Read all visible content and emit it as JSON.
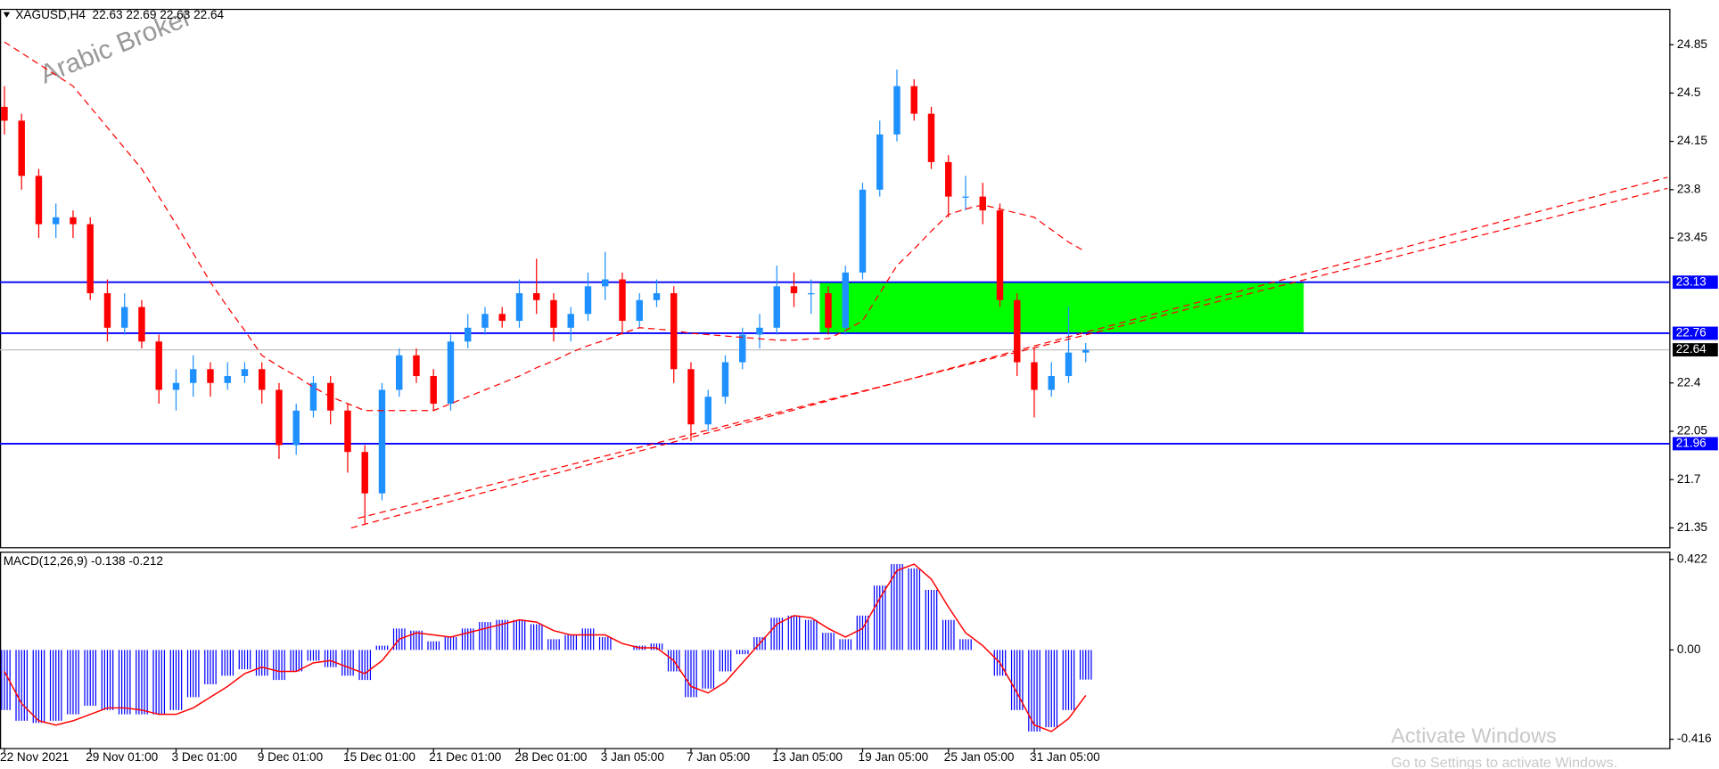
{
  "chart_data": [
    {
      "type": "candlestick",
      "title": "XAGUSD,H4  22.63 22.69 22.63 22.64",
      "watermark": "Arabic Broker",
      "categories": [
        "22 Nov 2021",
        null,
        null,
        null,
        null,
        "29 Nov 01:00",
        null,
        null,
        null,
        null,
        "3 Dec 01:00",
        null,
        null,
        null,
        null,
        "9 Dec 01:00",
        null,
        null,
        null,
        null,
        "15 Dec 01:00",
        null,
        null,
        null,
        null,
        "21 Dec 01:00",
        null,
        null,
        null,
        null,
        "28 Dec 01:00",
        null,
        null,
        null,
        null,
        "3 Jan 05:00",
        null,
        null,
        null,
        null,
        "7 Jan 05:00",
        null,
        null,
        null,
        null,
        "13 Jan 05:00",
        null,
        null,
        null,
        null,
        "19 Jan 05:00",
        null,
        null,
        null,
        null,
        "25 Jan 05:00",
        null,
        null,
        null,
        null,
        "31 Jan 05:00",
        null,
        null,
        null
      ],
      "open": [
        24.4,
        24.3,
        23.9,
        23.55,
        23.6,
        23.55,
        23.05,
        22.8,
        22.95,
        22.7,
        22.35,
        22.4,
        22.5,
        22.4,
        22.45,
        22.5,
        22.35,
        21.95,
        22.2,
        22.4,
        22.2,
        21.9,
        21.6,
        22.35,
        22.6,
        22.45,
        22.25,
        22.7,
        22.8,
        22.9,
        22.85,
        23.05,
        23.0,
        22.8,
        22.9,
        23.1,
        23.15,
        22.85,
        23.0,
        23.05,
        22.5,
        22.1,
        22.3,
        22.55,
        22.75,
        22.8,
        23.1,
        23.05,
        23.05,
        22.8,
        23.2,
        23.8,
        24.2,
        24.55,
        24.35,
        24.0,
        23.75,
        23.75,
        23.65,
        23.0,
        22.55,
        22.35,
        22.45,
        22.62
      ],
      "high": [
        24.55,
        24.35,
        23.95,
        23.7,
        23.65,
        23.6,
        23.15,
        23.05,
        23.0,
        22.75,
        22.5,
        22.6,
        22.55,
        22.55,
        22.55,
        22.55,
        22.4,
        22.25,
        22.45,
        22.45,
        22.25,
        21.95,
        22.4,
        22.65,
        22.65,
        22.5,
        22.75,
        22.9,
        22.95,
        22.95,
        23.15,
        23.3,
        23.05,
        22.95,
        23.2,
        23.35,
        23.2,
        23.05,
        23.15,
        23.1,
        22.55,
        22.35,
        22.6,
        22.8,
        22.9,
        23.25,
        23.2,
        23.15,
        23.1,
        23.25,
        23.85,
        24.3,
        24.67,
        24.6,
        24.4,
        24.05,
        23.9,
        23.85,
        23.7,
        23.05,
        22.65,
        22.55,
        22.95,
        22.69
      ],
      "low": [
        24.2,
        23.8,
        23.45,
        23.45,
        23.45,
        23.0,
        22.7,
        22.75,
        22.65,
        22.25,
        22.2,
        22.3,
        22.3,
        22.35,
        22.4,
        22.25,
        21.85,
        21.88,
        22.15,
        22.1,
        21.75,
        21.38,
        21.55,
        22.3,
        22.4,
        22.2,
        22.2,
        22.65,
        22.75,
        22.8,
        22.8,
        22.9,
        22.7,
        22.7,
        22.85,
        23.0,
        22.75,
        22.8,
        22.95,
        22.4,
        21.98,
        22.05,
        22.25,
        22.5,
        22.65,
        22.75,
        22.95,
        22.9,
        22.75,
        22.75,
        23.15,
        23.75,
        24.15,
        24.3,
        23.95,
        23.6,
        23.65,
        23.55,
        22.95,
        22.45,
        22.15,
        22.3,
        22.4,
        22.55
      ],
      "close": [
        24.3,
        23.9,
        23.55,
        23.6,
        23.55,
        23.05,
        22.8,
        22.95,
        22.7,
        22.35,
        22.4,
        22.5,
        22.4,
        22.45,
        22.5,
        22.35,
        21.95,
        22.2,
        22.4,
        22.2,
        21.9,
        21.6,
        22.35,
        22.6,
        22.45,
        22.25,
        22.7,
        22.8,
        22.9,
        22.85,
        23.05,
        23.0,
        22.8,
        22.9,
        23.1,
        23.15,
        22.85,
        23.0,
        23.05,
        22.5,
        22.1,
        22.3,
        22.55,
        22.75,
        22.8,
        23.1,
        23.05,
        23.05,
        22.8,
        23.2,
        23.8,
        24.2,
        24.55,
        24.35,
        24.0,
        23.75,
        23.75,
        23.65,
        23.0,
        22.55,
        22.35,
        22.45,
        22.62,
        22.64
      ],
      "up_color": "#1e90ff",
      "down_color": "#ff0000",
      "xlim": [
        0,
        97
      ],
      "ylim": [
        21.21,
        25.11
      ],
      "yticks": [
        21.35,
        21.7,
        22.05,
        22.4,
        23.45,
        23.8,
        24.15,
        24.5,
        24.85
      ],
      "moving_average": {
        "color": "#ff0000",
        "values": [
          24.87,
          24.79,
          24.71,
          24.63,
          24.55,
          24.4,
          24.25,
          24.1,
          23.95,
          23.75,
          23.55,
          23.34,
          23.13,
          22.95,
          22.78,
          22.6,
          22.52,
          22.45,
          22.37,
          22.3,
          22.25,
          22.2,
          22.2,
          22.2,
          22.2,
          22.2,
          22.25,
          22.3,
          22.35,
          22.4,
          22.45,
          22.51,
          22.56,
          22.62,
          22.67,
          22.71,
          22.76,
          22.8,
          22.79,
          22.78,
          22.76,
          22.75,
          22.74,
          22.73,
          22.72,
          22.71,
          22.71,
          22.72,
          22.72,
          22.78,
          22.85,
          23.05,
          23.25,
          23.37,
          23.5,
          23.62,
          23.66,
          23.69,
          23.66,
          23.63,
          23.6,
          23.51,
          23.42,
          23.35
        ]
      },
      "trendlines": [
        {
          "x": [
            20.2,
            96.9
          ],
          "y": [
            21.35,
            23.89
          ]
        },
        {
          "x": [
            20.6,
            96.9
          ],
          "y": [
            21.42,
            23.81
          ]
        }
      ],
      "levels": [
        23.13,
        22.76,
        21.96
      ],
      "level_color": "#0000ff",
      "last_price": 22.64,
      "zone": {
        "x": [
          47.5,
          75.7
        ],
        "y": [
          22.76,
          23.13
        ],
        "color": "#00ff00"
      }
    },
    {
      "type": "macd",
      "title": "MACD(12,26,9) -0.138 -0.212",
      "histogram": {
        "color": "#0000ff",
        "values": [
          -0.28,
          -0.33,
          -0.34,
          -0.33,
          -0.3,
          -0.26,
          -0.28,
          -0.3,
          -0.3,
          -0.3,
          -0.28,
          -0.22,
          -0.16,
          -0.12,
          -0.09,
          -0.12,
          -0.14,
          -0.1,
          -0.05,
          -0.08,
          -0.12,
          -0.14,
          0.02,
          0.1,
          0.09,
          0.04,
          0.06,
          0.1,
          0.13,
          0.14,
          0.14,
          0.12,
          0.05,
          0.07,
          0.1,
          0.06,
          0.0,
          0.02,
          0.03,
          -0.1,
          -0.22,
          -0.18,
          -0.1,
          -0.02,
          0.06,
          0.15,
          0.16,
          0.14,
          0.08,
          0.05,
          0.16,
          0.3,
          0.4,
          0.38,
          0.28,
          0.14,
          0.05,
          0.0,
          -0.12,
          -0.28,
          -0.38,
          -0.36,
          -0.28,
          -0.138
        ]
      },
      "signal": {
        "color": "#ff0000",
        "values": [
          -0.1,
          -0.25,
          -0.33,
          -0.35,
          -0.33,
          -0.3,
          -0.27,
          -0.27,
          -0.28,
          -0.3,
          -0.3,
          -0.27,
          -0.22,
          -0.17,
          -0.11,
          -0.08,
          -0.1,
          -0.1,
          -0.06,
          -0.05,
          -0.08,
          -0.11,
          -0.05,
          0.05,
          0.08,
          0.07,
          0.06,
          0.08,
          0.1,
          0.12,
          0.14,
          0.13,
          0.09,
          0.07,
          0.07,
          0.07,
          0.03,
          0.01,
          0.01,
          -0.05,
          -0.17,
          -0.2,
          -0.15,
          -0.06,
          0.03,
          0.12,
          0.16,
          0.15,
          0.1,
          0.06,
          0.1,
          0.24,
          0.37,
          0.4,
          0.33,
          0.2,
          0.08,
          0.02,
          -0.06,
          -0.2,
          -0.35,
          -0.38,
          -0.32,
          -0.212
        ]
      },
      "xlim": [
        0,
        97
      ],
      "ylim": [
        -0.457,
        0.458
      ],
      "yticks": [
        {
          "value": 0.422,
          "label": "0.422"
        },
        {
          "value": 0,
          "label": "0.00"
        },
        {
          "value": -0.416,
          "label": "-0.416"
        }
      ]
    }
  ],
  "overlay": {
    "activate": "Activate Windows",
    "settings": "Go to Settings to activate Windows."
  }
}
